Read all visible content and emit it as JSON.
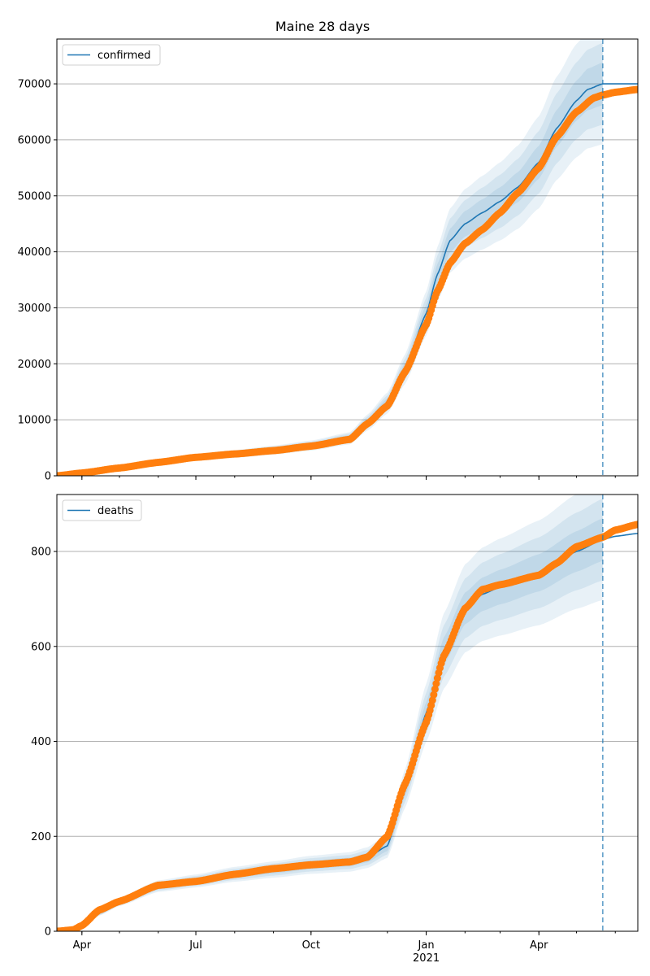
{
  "title": "Maine 28 days",
  "x_ticks": [
    {
      "date": "2020-04-01",
      "label": "Apr",
      "sub": ""
    },
    {
      "date": "2020-07-01",
      "label": "Jul",
      "sub": ""
    },
    {
      "date": "2020-10-01",
      "label": "Oct",
      "sub": ""
    },
    {
      "date": "2021-01-01",
      "label": "Jan",
      "sub": "2021"
    },
    {
      "date": "2021-04-01",
      "label": "Apr",
      "sub": ""
    }
  ],
  "chart_data": [
    {
      "type": "line",
      "legend": "confirmed",
      "legend_position": "upper-left",
      "grid": "horizontal",
      "x_range": [
        "2020-03-12",
        "2021-06-19"
      ],
      "ylim": [
        0,
        78000
      ],
      "y_ticks": [
        0,
        10000,
        20000,
        30000,
        40000,
        50000,
        60000,
        70000
      ],
      "forecast_start": "2021-05-22",
      "colors": {
        "model": "#1f77b4",
        "observed": "#ff7f0e",
        "band": "#1f77b4"
      },
      "model": {
        "dates": [
          "2020-03-12",
          "2020-04-01",
          "2020-05-01",
          "2020-06-01",
          "2020-07-01",
          "2020-08-01",
          "2020-09-01",
          "2020-10-01",
          "2020-11-01",
          "2020-11-15",
          "2020-12-01",
          "2020-12-15",
          "2021-01-01",
          "2021-01-10",
          "2021-01-20",
          "2021-02-01",
          "2021-02-15",
          "2021-03-01",
          "2021-03-15",
          "2021-04-01",
          "2021-04-15",
          "2021-05-01",
          "2021-05-10",
          "2021-05-22"
        ],
        "values": [
          100,
          500,
          1500,
          2500,
          3300,
          3900,
          4600,
          5400,
          6700,
          9500,
          13000,
          19000,
          29000,
          36000,
          42000,
          45000,
          47000,
          49000,
          51500,
          56000,
          62000,
          67000,
          69000,
          70000
        ]
      },
      "band_spread": [
        0.05,
        0.1,
        0.15
      ],
      "observed": {
        "dates": [
          "2020-03-12",
          "2020-04-01",
          "2020-05-01",
          "2020-06-01",
          "2020-07-01",
          "2020-08-01",
          "2020-09-01",
          "2020-10-01",
          "2020-11-01",
          "2020-11-15",
          "2020-12-01",
          "2020-12-15",
          "2021-01-01",
          "2021-01-10",
          "2021-01-20",
          "2021-02-01",
          "2021-02-15",
          "2021-03-01",
          "2021-03-15",
          "2021-04-01",
          "2021-04-15",
          "2021-05-01",
          "2021-05-15",
          "2021-05-22",
          "2021-06-01",
          "2021-06-19"
        ],
        "values": [
          0,
          500,
          1400,
          2400,
          3300,
          3900,
          4500,
          5300,
          6500,
          9300,
          12500,
          18500,
          27000,
          33000,
          38000,
          41500,
          44000,
          47000,
          50500,
          55000,
          60500,
          65000,
          67500,
          68000,
          68500,
          69000
        ]
      }
    },
    {
      "type": "line",
      "legend": "deaths",
      "legend_position": "upper-left",
      "grid": "horizontal",
      "x_range": [
        "2020-03-12",
        "2021-06-19"
      ],
      "ylim": [
        0,
        920
      ],
      "y_ticks": [
        0,
        200,
        400,
        600,
        800
      ],
      "forecast_start": "2021-05-22",
      "colors": {
        "model": "#1f77b4",
        "observed": "#ff7f0e",
        "band": "#1f77b4"
      },
      "model": {
        "dates": [
          "2020-03-12",
          "2020-03-25",
          "2020-04-01",
          "2020-04-15",
          "2020-05-01",
          "2020-06-01",
          "2020-07-01",
          "2020-08-01",
          "2020-09-01",
          "2020-10-01",
          "2020-11-01",
          "2020-11-15",
          "2020-12-01",
          "2020-12-15",
          "2021-01-01",
          "2021-01-15",
          "2021-02-01",
          "2021-02-15",
          "2021-03-01",
          "2021-04-01",
          "2021-05-01",
          "2021-05-22",
          "2021-06-01",
          "2021-06-19"
        ],
        "values": [
          0,
          2,
          10,
          40,
          62,
          95,
          106,
          120,
          130,
          140,
          146,
          155,
          180,
          300,
          460,
          590,
          680,
          710,
          725,
          755,
          800,
          825,
          832,
          838
        ]
      },
      "band_spread": [
        0.05,
        0.1,
        0.15
      ],
      "observed": {
        "dates": [
          "2020-03-12",
          "2020-03-25",
          "2020-04-01",
          "2020-04-15",
          "2020-05-01",
          "2020-06-01",
          "2020-07-01",
          "2020-08-01",
          "2020-09-01",
          "2020-10-01",
          "2020-11-01",
          "2020-11-15",
          "2020-12-01",
          "2020-12-15",
          "2021-01-01",
          "2021-01-15",
          "2021-02-01",
          "2021-02-15",
          "2021-03-01",
          "2021-04-01",
          "2021-04-15",
          "2021-05-01",
          "2021-05-22",
          "2021-06-01",
          "2021-06-19"
        ],
        "values": [
          0,
          3,
          12,
          45,
          63,
          97,
          105,
          120,
          132,
          140,
          146,
          156,
          200,
          310,
          440,
          580,
          680,
          720,
          730,
          750,
          775,
          810,
          830,
          845,
          857
        ]
      }
    }
  ]
}
